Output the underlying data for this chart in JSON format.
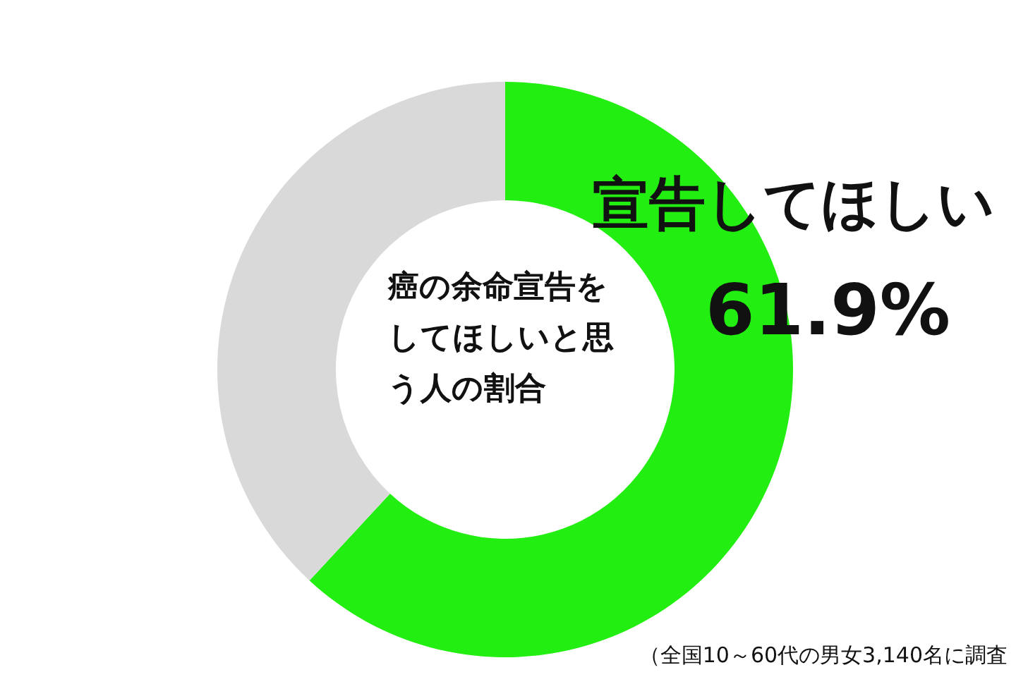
{
  "chart_data": {
    "type": "donut",
    "title": "癌の余命宣告をしてほしいと思う人の割合",
    "categories": [
      "宣告してほしい",
      null
    ],
    "values": [
      61.9,
      38.1
    ],
    "colors": [
      "#22ee11",
      "#d9d9d9"
    ],
    "value_labels": [
      "61.9%",
      null
    ],
    "legend": false,
    "annotations": [
      "（全国10～60代の男女3,140名に調査"
    ]
  }
}
